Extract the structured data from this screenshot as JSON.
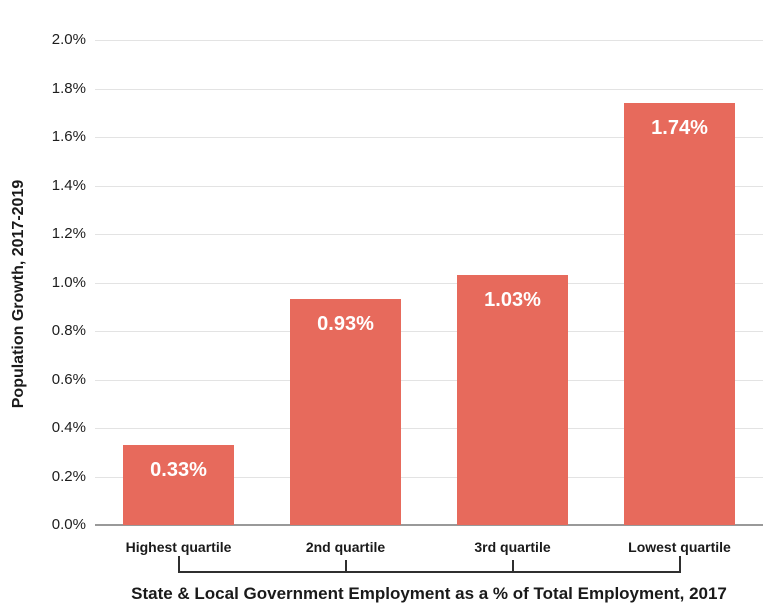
{
  "chart_data": {
    "type": "bar",
    "title": "",
    "categories": [
      "Highest quartile",
      "2nd quartile",
      "3rd quartile",
      "Lowest quartile"
    ],
    "values": [
      0.33,
      0.93,
      1.03,
      1.74
    ],
    "bar_labels": [
      "0.33%",
      "0.93%",
      "1.03%",
      "1.74%"
    ],
    "ylabel": "Population Growth, 2017-2019",
    "xlabel": "State & Local Government Employment as a % of Total Employment, 2017",
    "y_ticks": [
      "2.0%",
      "1.8%",
      "1.6%",
      "1.4%",
      "1.2%",
      "1.0%",
      "0.8%",
      "0.6%",
      "0.4%",
      "0.2%",
      "0.0%"
    ],
    "ylim": [
      0,
      2.0
    ],
    "grid": true,
    "legend": "none",
    "colors": {
      "bar": "#e76a5c",
      "bar_label": "#ffffff",
      "gridline": "#e3e3e3",
      "baseline": "#999999",
      "text": "#1a1a1a",
      "bracket": "#2f2f2f"
    }
  }
}
